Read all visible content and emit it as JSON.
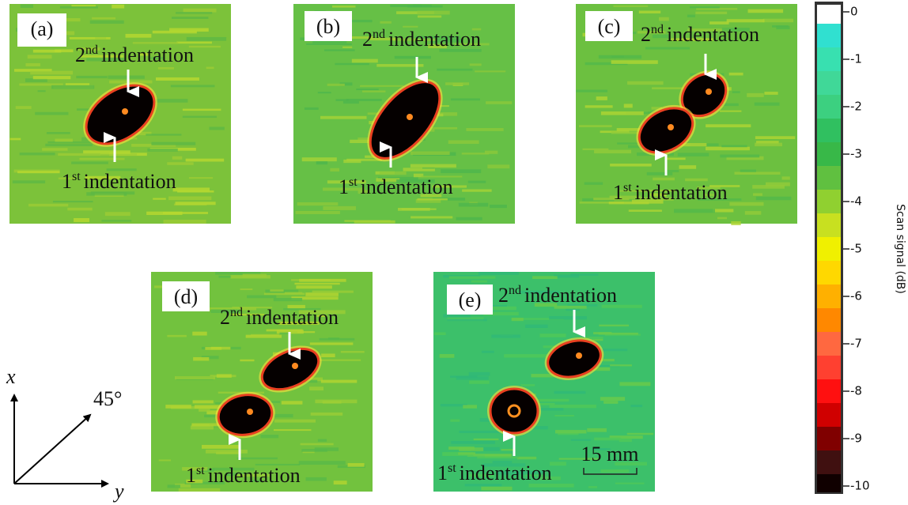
{
  "panels": [
    {
      "label": "(a)",
      "second": {
        "ordinal": "2",
        "suffix": "nd",
        "text": "indentation"
      },
      "first": {
        "ordinal": "1",
        "suffix": "st",
        "text": "indentation"
      }
    },
    {
      "label": "(b)",
      "second": {
        "ordinal": "2",
        "suffix": "nd",
        "text": "indentation"
      },
      "first": {
        "ordinal": "1",
        "suffix": "st",
        "text": "indentation"
      }
    },
    {
      "label": "(c)",
      "second": {
        "ordinal": "2",
        "suffix": "nd",
        "text": "indentation"
      },
      "first": {
        "ordinal": "1",
        "suffix": "st",
        "text": "indentation"
      }
    },
    {
      "label": "(d)",
      "second": {
        "ordinal": "2",
        "suffix": "nd",
        "text": "indentation"
      },
      "first": {
        "ordinal": "1",
        "suffix": "st",
        "text": "indentation"
      }
    },
    {
      "label": "(e)",
      "second": {
        "ordinal": "2",
        "suffix": "nd",
        "text": "indentation"
      },
      "first": {
        "ordinal": "1",
        "suffix": "st",
        "text": "indentation"
      }
    }
  ],
  "scale_bar": "15 mm",
  "axes": {
    "x": "x",
    "y": "y",
    "angle": "45°"
  },
  "colorbar": {
    "title": "Scan signal (dB)",
    "lim": [
      -10,
      0
    ],
    "ticks": [
      0,
      -1,
      -2,
      -3,
      -4,
      -5,
      -6,
      -7,
      -8,
      -9,
      -10
    ]
  }
}
